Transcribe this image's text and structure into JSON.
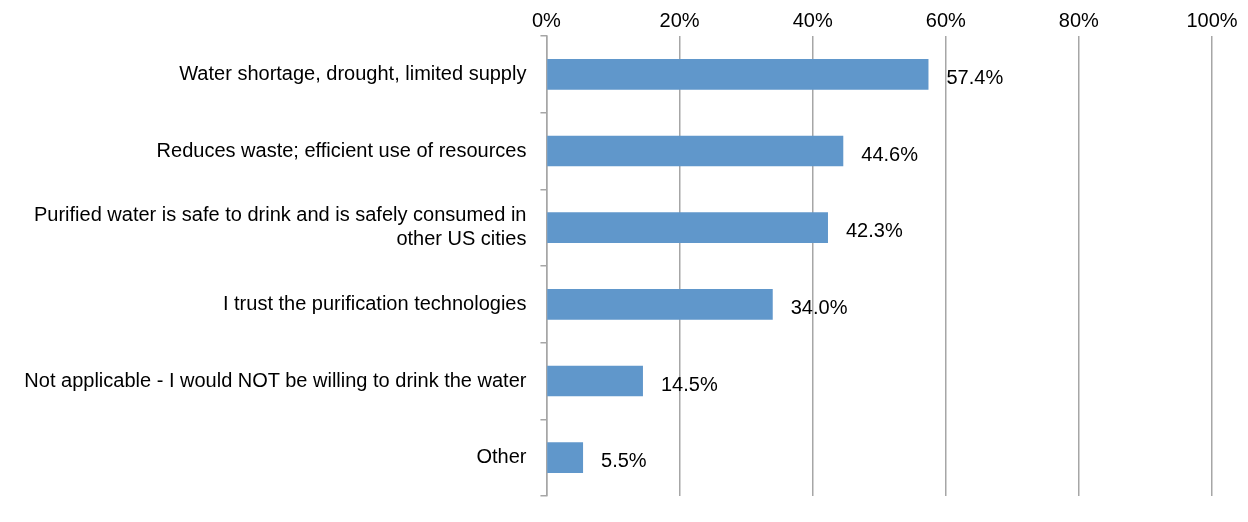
{
  "chart_data": {
    "type": "bar",
    "orientation": "horizontal",
    "categories": [
      "Water shortage, drought, limited supply",
      "Reduces waste; efficient use of resources",
      "Purified water is safe to drink and is safely consumed in other US cities",
      "I trust the purification technologies",
      "Not applicable - I would NOT be willing to drink the water",
      "Other"
    ],
    "values": [
      57.4,
      44.6,
      42.3,
      34.0,
      14.5,
      5.5
    ],
    "value_labels": [
      "57.4%",
      "44.6%",
      "42.3%",
      "34.0%",
      "14.5%",
      "5.5%"
    ],
    "color": "#6097cb",
    "xlim": [
      0,
      100
    ],
    "xticks": [
      {
        "value": 0,
        "label": "0%"
      },
      {
        "value": 20,
        "label": "20%"
      },
      {
        "value": 40,
        "label": "40%"
      },
      {
        "value": 60,
        "label": "60%"
      },
      {
        "value": 80,
        "label": "80%"
      },
      {
        "value": 100,
        "label": "100%"
      }
    ],
    "grid": "x",
    "legend": false
  }
}
